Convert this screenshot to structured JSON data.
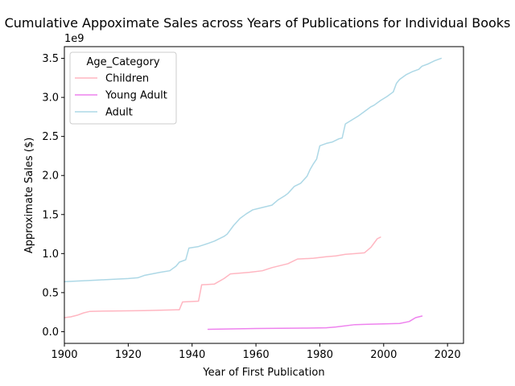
{
  "chart_data": {
    "type": "line",
    "title": "Cumulative Appoximate Sales across Years of Publications for Individual Books",
    "xlabel": "Year of First Publication",
    "ylabel": "Approximate Sales ($)",
    "y_offset_text": "1e9",
    "xlim": [
      1900,
      2025
    ],
    "ylim": [
      -0.15,
      3.65
    ],
    "x_ticks": [
      1900,
      1920,
      1940,
      1960,
      1980,
      2000,
      2020
    ],
    "y_ticks": [
      0.0,
      0.5,
      1.0,
      1.5,
      2.0,
      2.5,
      3.0,
      3.5
    ],
    "x_tick_labels": [
      "1900",
      "1920",
      "1940",
      "1960",
      "1980",
      "2000",
      "2020"
    ],
    "y_tick_labels": [
      "0.0",
      "0.5",
      "1.0",
      "1.5",
      "2.0",
      "2.5",
      "3.0",
      "3.5"
    ],
    "legend": {
      "title": "Age_Category",
      "position": "upper-left",
      "entries": [
        "Children",
        "Young Adult",
        "Adult"
      ]
    },
    "series": [
      {
        "name": "Children",
        "color": "#ffb6c1",
        "x": [
          1900,
          1902,
          1904,
          1906,
          1908,
          1915,
          1925,
          1935,
          1936,
          1937,
          1942,
          1943,
          1947,
          1950,
          1952,
          1955,
          1958,
          1962,
          1965,
          1970,
          1973,
          1978,
          1982,
          1985,
          1988,
          1991,
          1994,
          1996,
          1998,
          1999
        ],
        "y": [
          0.18,
          0.19,
          0.21,
          0.24,
          0.26,
          0.265,
          0.27,
          0.28,
          0.28,
          0.38,
          0.39,
          0.6,
          0.61,
          0.68,
          0.74,
          0.75,
          0.76,
          0.78,
          0.82,
          0.87,
          0.93,
          0.94,
          0.96,
          0.97,
          0.99,
          1.0,
          1.01,
          1.08,
          1.19,
          1.21
        ]
      },
      {
        "name": "Young Adult",
        "color": "#ee82ee",
        "x": [
          1945,
          1960,
          1975,
          1982,
          1985,
          1991,
          1995,
          2000,
          2005,
          2008,
          2010,
          2012
        ],
        "y": [
          0.03,
          0.04,
          0.045,
          0.05,
          0.06,
          0.09,
          0.095,
          0.1,
          0.105,
          0.13,
          0.18,
          0.2
        ]
      },
      {
        "name": "Adult",
        "color": "#add8e6",
        "x": [
          1900,
          1910,
          1920,
          1923,
          1925,
          1930,
          1933,
          1935,
          1936,
          1938,
          1939,
          1942,
          1945,
          1947,
          1950,
          1951,
          1953,
          1955,
          1957,
          1959,
          1961,
          1965,
          1967,
          1969,
          1970,
          1972,
          1974,
          1976,
          1977,
          1978,
          1979,
          1980,
          1982,
          1984,
          1986,
          1987,
          1988,
          1990,
          1992,
          1994,
          1996,
          1997,
          1999,
          2001,
          2003,
          2004,
          2005,
          2007,
          2009,
          2011,
          2012,
          2014,
          2016,
          2018
        ],
        "y": [
          0.64,
          0.66,
          0.68,
          0.69,
          0.72,
          0.76,
          0.78,
          0.84,
          0.89,
          0.92,
          1.07,
          1.09,
          1.13,
          1.16,
          1.22,
          1.25,
          1.36,
          1.45,
          1.51,
          1.56,
          1.58,
          1.62,
          1.69,
          1.74,
          1.77,
          1.86,
          1.9,
          1.99,
          2.08,
          2.15,
          2.21,
          2.38,
          2.41,
          2.43,
          2.47,
          2.48,
          2.66,
          2.71,
          2.76,
          2.82,
          2.88,
          2.9,
          2.96,
          3.01,
          3.07,
          3.18,
          3.23,
          3.29,
          3.33,
          3.36,
          3.4,
          3.43,
          3.47,
          3.5
        ]
      }
    ]
  }
}
